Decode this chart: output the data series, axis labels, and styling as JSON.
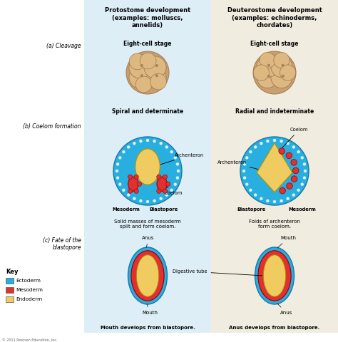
{
  "bg_color": "#ffffff",
  "left_col_bg": "#ddeef6",
  "right_col_bg": "#f0ece0",
  "ectoderm_color": "#29aee0",
  "mesoderm_color": "#e03030",
  "endoderm_color": "#f0cc60",
  "cell_color": "#c8a070",
  "cell_highlight": "#ddb880",
  "cell_border": "#a07850",
  "header_left": "Protostome development\n(examples: molluscs,\nannelids)",
  "header_right": "Deuterostome development\n(examples: echinoderms,\nchordates)",
  "label_a": "(a) Cleavage",
  "label_b": "(b) Coelom formation",
  "label_c": "(c) Fate of the\nblastopore",
  "sublabel_left_a": "Eight-cell stage",
  "sublabel_right_a": "Eight-cell stage",
  "caption_left_a": "Spiral and determinate",
  "caption_right_a": "Radial and indeterminate",
  "caption_left_b": "Solid masses of mesoderm\nsplit and form coelom.",
  "caption_right_b": "Folds of archenteron\nform coelom.",
  "caption_left_c": "Mouth develops from blastopore.",
  "caption_right_c": "Anus develops from blastopore.",
  "key_title": "Key",
  "key_items": [
    "Ectoderm",
    "Mesoderm",
    "Endoderm"
  ],
  "key_colors": [
    "#29aee0",
    "#e03030",
    "#f0cc60"
  ],
  "copyright": "© 2011 Pearson Education, Inc."
}
